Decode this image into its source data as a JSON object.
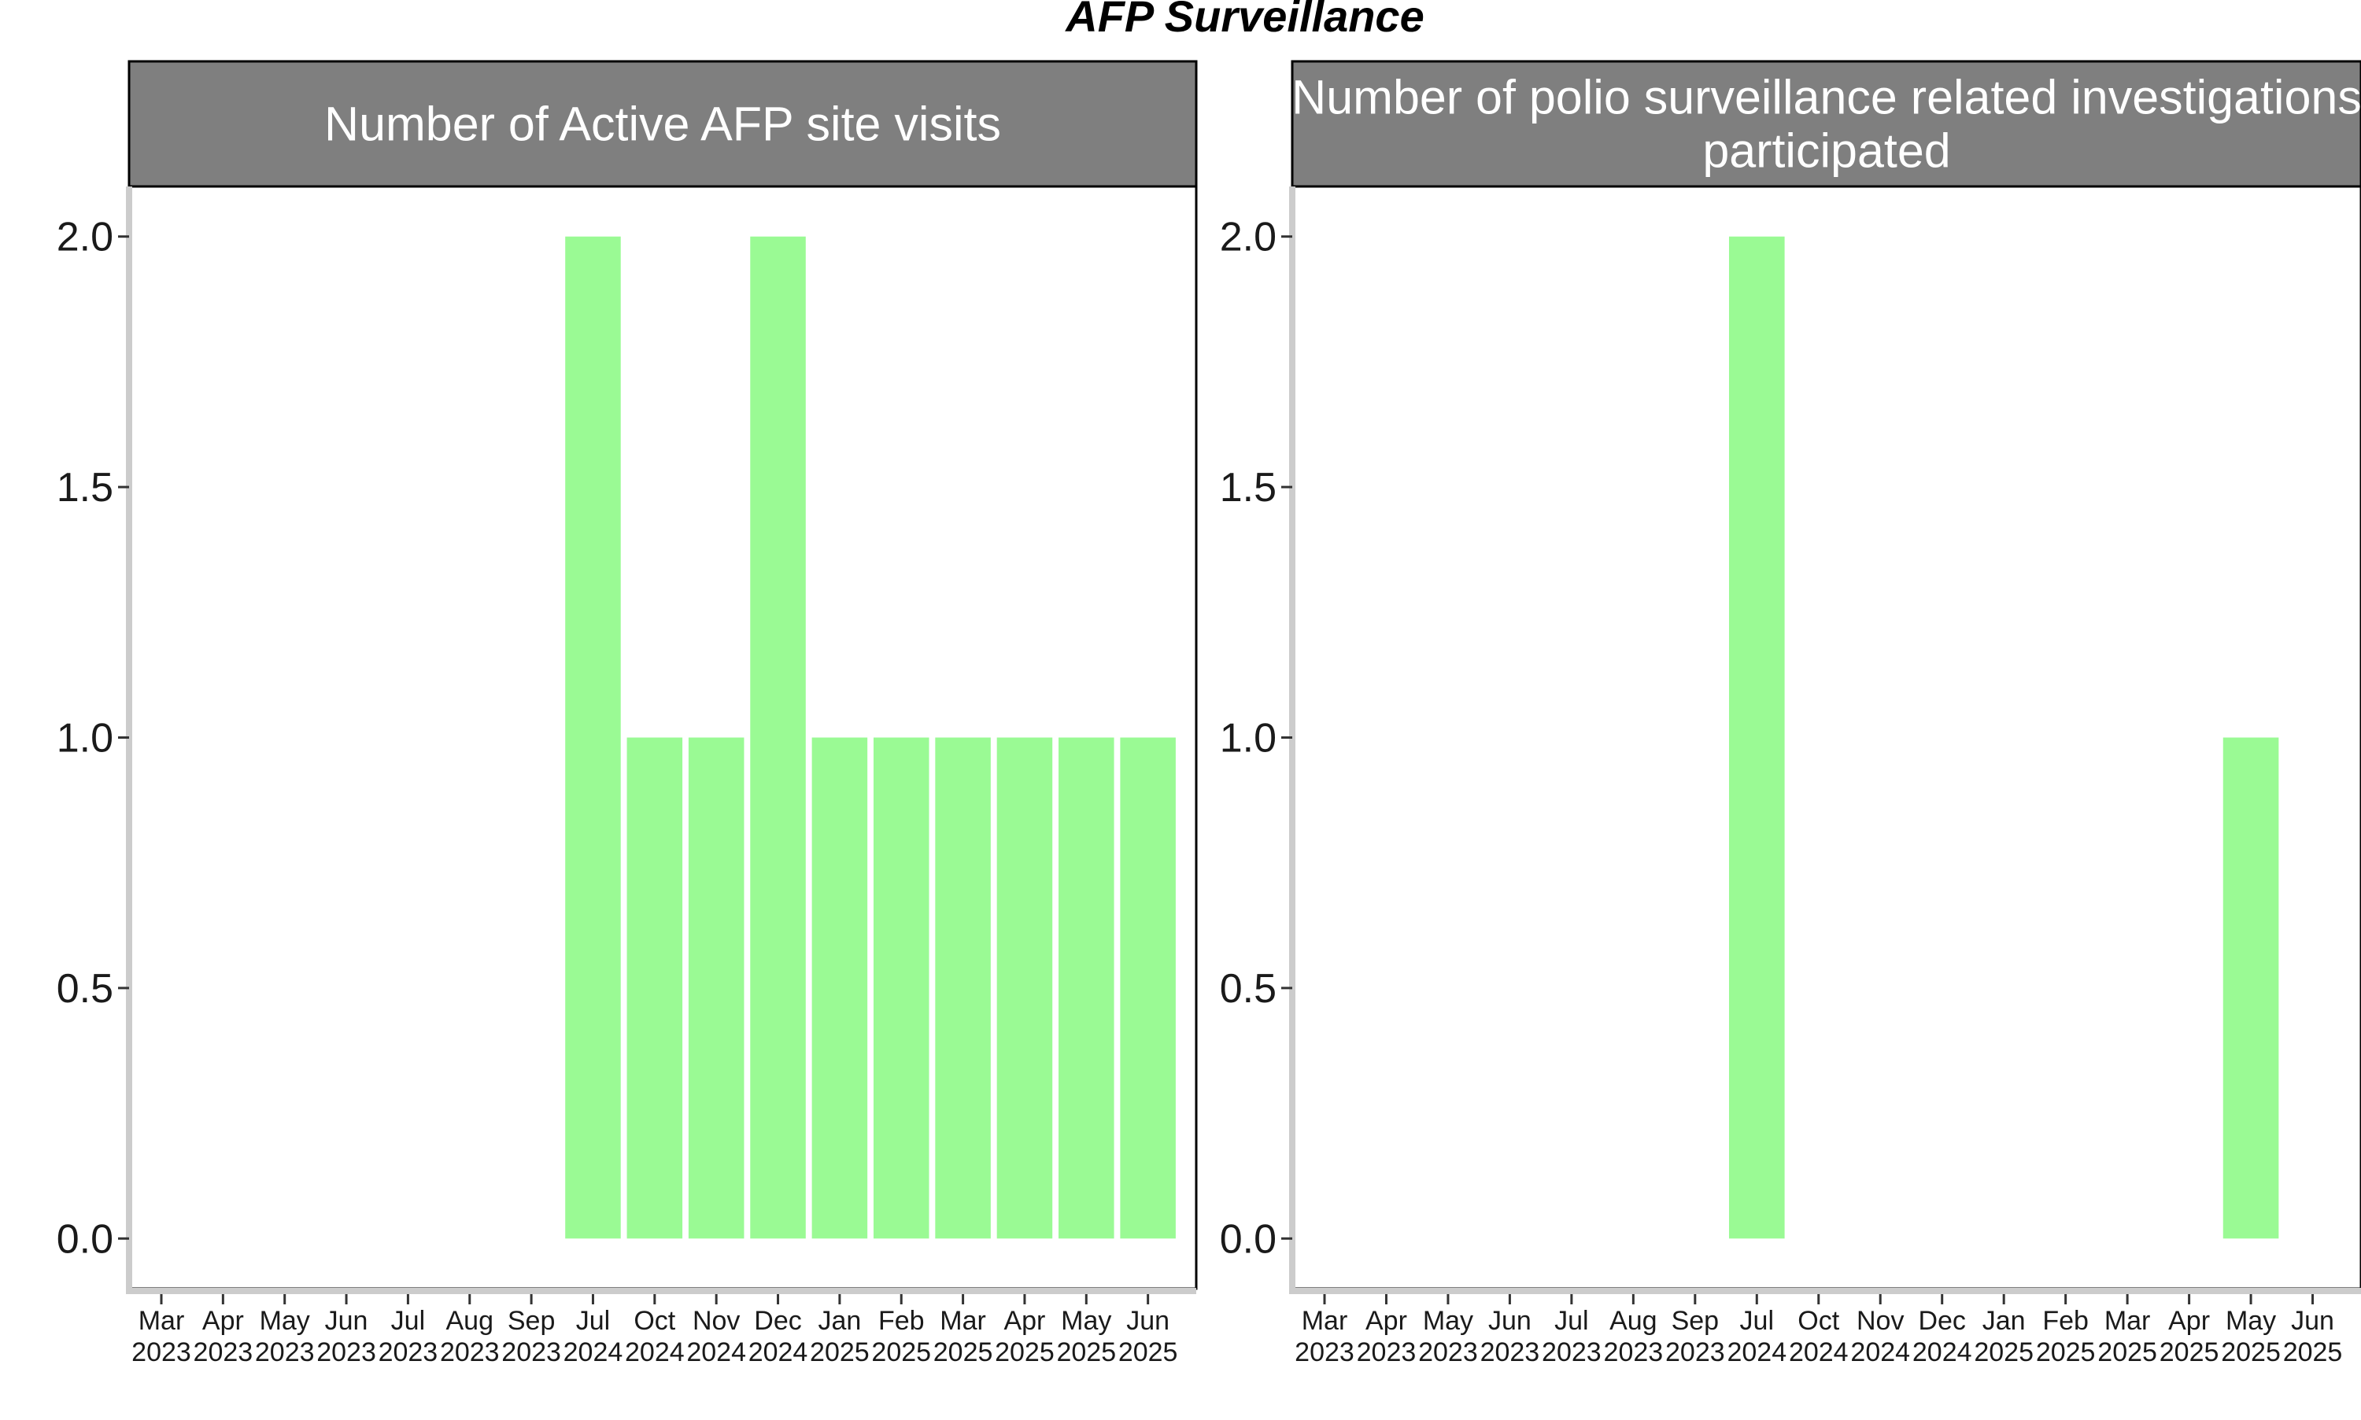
{
  "chart_data": {
    "title": "AFP Surveillance",
    "type": "bar",
    "categories": [
      "Mar\n2023",
      "Apr\n2023",
      "May\n2023",
      "Jun\n2023",
      "Jul\n2023",
      "Aug\n2023",
      "Sep\n2023",
      "Jul\n2024",
      "Oct\n2024",
      "Nov\n2024",
      "Dec\n2024",
      "Jan\n2025",
      "Feb\n2025",
      "Mar\n2025",
      "Apr\n2025",
      "May\n2025",
      "Jun\n2025"
    ],
    "ylim": [
      -0.1,
      2.1
    ],
    "yticks": [
      "0.0",
      "0.5",
      "1.0",
      "1.5",
      "2.0"
    ],
    "ytick_values": [
      0,
      0.5,
      1,
      1.5,
      2
    ],
    "bar_color": "#9afa94",
    "strip_color": "#7f7f7f",
    "axis_color": "#cccccc",
    "facets": [
      {
        "title": "Number of Active AFP site visits",
        "values": [
          0,
          0,
          0,
          0,
          0,
          0,
          0,
          2,
          1,
          1,
          2,
          1,
          1,
          1,
          1,
          1,
          1
        ]
      },
      {
        "title": "Number of polio surveillance related investigations\nparticipated",
        "values": [
          0,
          0,
          0,
          0,
          0,
          0,
          0,
          2,
          0,
          0,
          0,
          0,
          0,
          0,
          0,
          1,
          0
        ]
      }
    ]
  }
}
